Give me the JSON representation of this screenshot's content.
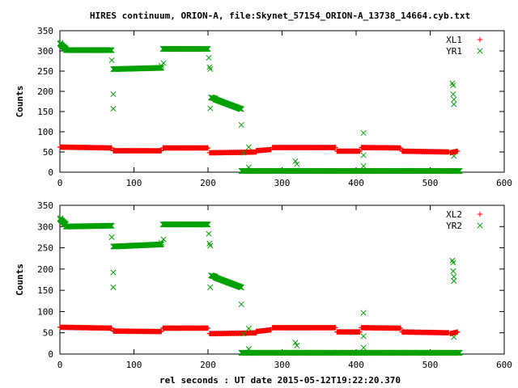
{
  "title": "HIRES continuum, ORION-A, file:Skynet_57154_ORION-A_13738_14664.cyb.txt",
  "xlabel": "rel seconds : UT date 2015-05-12T19:22:20.370",
  "colors": {
    "red": "#ff0000",
    "green": "#00a000",
    "axis": "#000000"
  },
  "chart_data": [
    {
      "type": "scatter",
      "ylabel": "Counts",
      "xlim": [
        0,
        600
      ],
      "ylim": [
        0,
        350
      ],
      "xticks": [
        0,
        100,
        200,
        300,
        400,
        500,
        600
      ],
      "yticks": [
        0,
        50,
        100,
        150,
        200,
        250,
        300,
        350
      ],
      "legend_position": "top-right",
      "series": [
        {
          "name": "XL1",
          "marker": "plus",
          "color": "#ff0000",
          "segments": [
            {
              "x": [
                0,
                70
              ],
              "y": [
                62,
                60
              ]
            },
            {
              "x": [
                72,
                137
              ],
              "y": [
                53,
                53
              ]
            },
            {
              "x": [
                139,
                200
              ],
              "y": [
                60,
                60
              ]
            },
            {
              "x": [
                202,
                245
              ],
              "y": [
                48,
                49
              ]
            },
            {
              "x": [
                245,
                265
              ],
              "y": [
                49,
                50
              ]
            },
            {
              "x": [
                265,
                285
              ],
              "y": [
                53,
                56
              ]
            },
            {
              "x": [
                287,
                372
              ],
              "y": [
                61,
                61
              ]
            },
            {
              "x": [
                374,
                405
              ],
              "y": [
                52,
                52
              ]
            },
            {
              "x": [
                407,
                460
              ],
              "y": [
                61,
                60
              ]
            },
            {
              "x": [
                462,
                525
              ],
              "y": [
                52,
                50
              ]
            },
            {
              "x": [
                527,
                537
              ],
              "y": [
                48,
                52
              ]
            }
          ]
        },
        {
          "name": "YR1",
          "marker": "x",
          "color": "#00a000",
          "segments": [
            {
              "x": [
                0,
                8
              ],
              "y": [
                318,
                305
              ]
            },
            {
              "x": [
                8,
                70
              ],
              "y": [
                302,
                302
              ]
            },
            {
              "x": [
                72,
                137
              ],
              "y": [
                255,
                258
              ]
            },
            {
              "x": [
                139,
                200
              ],
              "y": [
                305,
                305
              ]
            },
            {
              "x": [
                204,
                210
              ],
              "y": [
                185,
                182
              ]
            },
            {
              "x": [
                210,
                245
              ],
              "y": [
                180,
                156
              ]
            },
            {
              "x": [
                245,
                540
              ],
              "y": [
                3,
                3
              ]
            }
          ],
          "points": [
            {
              "x": 1,
              "y": 320
            },
            {
              "x": 3,
              "y": 313
            },
            {
              "x": 70,
              "y": 277
            },
            {
              "x": 72,
              "y": 193
            },
            {
              "x": 72,
              "y": 157
            },
            {
              "x": 137,
              "y": 263
            },
            {
              "x": 140,
              "y": 270
            },
            {
              "x": 201,
              "y": 283
            },
            {
              "x": 202,
              "y": 260
            },
            {
              "x": 203,
              "y": 255
            },
            {
              "x": 203,
              "y": 158
            },
            {
              "x": 245,
              "y": 117
            },
            {
              "x": 248,
              "y": 48
            },
            {
              "x": 255,
              "y": 62
            },
            {
              "x": 255,
              "y": 12
            },
            {
              "x": 318,
              "y": 27
            },
            {
              "x": 320,
              "y": 20
            },
            {
              "x": 410,
              "y": 97
            },
            {
              "x": 410,
              "y": 42
            },
            {
              "x": 410,
              "y": 15
            },
            {
              "x": 530,
              "y": 220
            },
            {
              "x": 531,
              "y": 215
            },
            {
              "x": 531,
              "y": 193
            },
            {
              "x": 532,
              "y": 180
            },
            {
              "x": 532,
              "y": 168
            },
            {
              "x": 532,
              "y": 40
            }
          ]
        }
      ]
    },
    {
      "type": "scatter",
      "ylabel": "Counts",
      "xlim": [
        0,
        600
      ],
      "ylim": [
        0,
        350
      ],
      "xticks": [
        0,
        100,
        200,
        300,
        400,
        500,
        600
      ],
      "yticks": [
        0,
        50,
        100,
        150,
        200,
        250,
        300,
        350
      ],
      "legend_position": "top-right",
      "series": [
        {
          "name": "XL2",
          "marker": "plus",
          "color": "#ff0000",
          "segments": [
            {
              "x": [
                0,
                70
              ],
              "y": [
                63,
                61
              ]
            },
            {
              "x": [
                72,
                137
              ],
              "y": [
                54,
                53
              ]
            },
            {
              "x": [
                139,
                200
              ],
              "y": [
                61,
                61
              ]
            },
            {
              "x": [
                202,
                245
              ],
              "y": [
                48,
                49
              ]
            },
            {
              "x": [
                245,
                265
              ],
              "y": [
                49,
                50
              ]
            },
            {
              "x": [
                265,
                285
              ],
              "y": [
                53,
                57
              ]
            },
            {
              "x": [
                287,
                372
              ],
              "y": [
                62,
                62
              ]
            },
            {
              "x": [
                374,
                405
              ],
              "y": [
                52,
                52
              ]
            },
            {
              "x": [
                407,
                460
              ],
              "y": [
                62,
                61
              ]
            },
            {
              "x": [
                462,
                525
              ],
              "y": [
                52,
                50
              ]
            },
            {
              "x": [
                527,
                537
              ],
              "y": [
                48,
                52
              ]
            }
          ]
        },
        {
          "name": "YR2",
          "marker": "x",
          "color": "#00a000",
          "segments": [
            {
              "x": [
                0,
                8
              ],
              "y": [
                318,
                305
              ]
            },
            {
              "x": [
                8,
                70
              ],
              "y": [
                300,
                302
              ]
            },
            {
              "x": [
                72,
                137
              ],
              "y": [
                253,
                258
              ]
            },
            {
              "x": [
                139,
                200
              ],
              "y": [
                305,
                305
              ]
            },
            {
              "x": [
                204,
                210
              ],
              "y": [
                185,
                182
              ]
            },
            {
              "x": [
                210,
                245
              ],
              "y": [
                180,
                157
              ]
            },
            {
              "x": [
                245,
                540
              ],
              "y": [
                3,
                3
              ]
            }
          ],
          "points": [
            {
              "x": 1,
              "y": 320
            },
            {
              "x": 3,
              "y": 313
            },
            {
              "x": 70,
              "y": 275
            },
            {
              "x": 72,
              "y": 192
            },
            {
              "x": 72,
              "y": 157
            },
            {
              "x": 137,
              "y": 262
            },
            {
              "x": 140,
              "y": 270
            },
            {
              "x": 201,
              "y": 283
            },
            {
              "x": 202,
              "y": 260
            },
            {
              "x": 203,
              "y": 255
            },
            {
              "x": 203,
              "y": 157
            },
            {
              "x": 245,
              "y": 117
            },
            {
              "x": 248,
              "y": 48
            },
            {
              "x": 255,
              "y": 60
            },
            {
              "x": 255,
              "y": 12
            },
            {
              "x": 318,
              "y": 27
            },
            {
              "x": 320,
              "y": 20
            },
            {
              "x": 410,
              "y": 97
            },
            {
              "x": 410,
              "y": 42
            },
            {
              "x": 410,
              "y": 15
            },
            {
              "x": 530,
              "y": 220
            },
            {
              "x": 531,
              "y": 215
            },
            {
              "x": 531,
              "y": 195
            },
            {
              "x": 532,
              "y": 182
            },
            {
              "x": 532,
              "y": 172
            },
            {
              "x": 532,
              "y": 40
            }
          ]
        }
      ]
    }
  ]
}
